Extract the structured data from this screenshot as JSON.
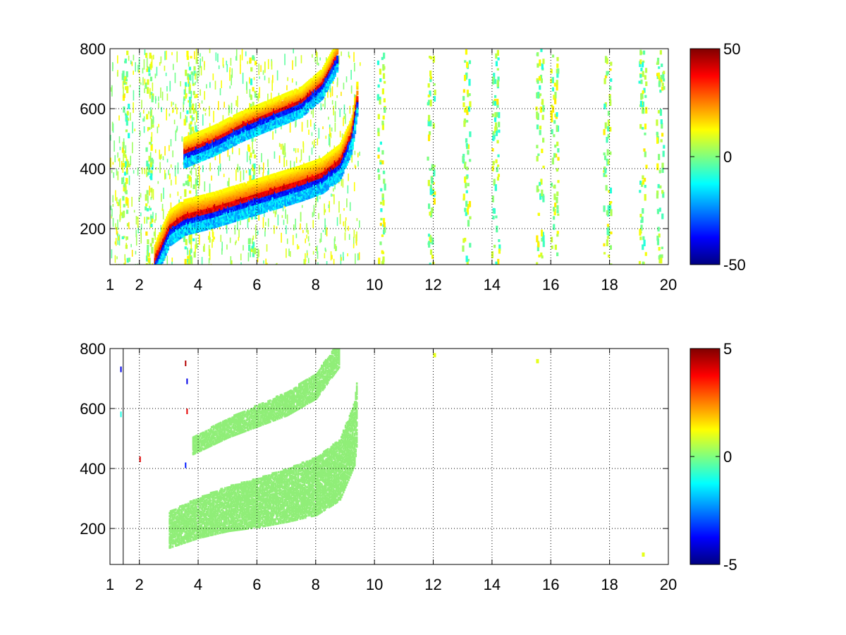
{
  "chart_data": [
    {
      "type": "heatmap",
      "title": "",
      "xlabel": "",
      "ylabel": "",
      "x_ticks": [
        1,
        2,
        4,
        6,
        8,
        10,
        12,
        14,
        16,
        18,
        20
      ],
      "x_tick_labels": [
        "1",
        "2",
        "4",
        "6",
        "8",
        "10",
        "12",
        "14",
        "16",
        "18",
        "20"
      ],
      "y_ticks": [
        200,
        400,
        600,
        800
      ],
      "y_tick_labels": [
        "200",
        "400",
        "600",
        "800"
      ],
      "xlim": [
        1,
        20
      ],
      "ylim": [
        80,
        800
      ],
      "grid": true,
      "colormap": "jet",
      "clim": [
        -50,
        50
      ],
      "colorbar_ticks": [
        -50,
        0,
        50
      ],
      "colorbar_tick_labels": [
        "-50",
        "0",
        "50"
      ],
      "features": [
        {
          "name": "upper band",
          "points": [
            [
              2.5,
              100
            ],
            [
              3.0,
              210
            ],
            [
              3.5,
              245
            ],
            [
              4.5,
              270
            ],
            [
              5.5,
              300
            ],
            [
              6.5,
              330
            ],
            [
              7.5,
              360
            ],
            [
              8.2,
              385
            ],
            [
              8.8,
              430
            ],
            [
              9.2,
              520
            ],
            [
              9.4,
              650
            ]
          ]
        },
        {
          "name": "lower-frequency arc",
          "points": [
            [
              3.5,
              460
            ],
            [
              4.5,
              500
            ],
            [
              5.5,
              550
            ],
            [
              6.5,
              590
            ],
            [
              7.5,
              630
            ],
            [
              8.2,
              690
            ],
            [
              8.7,
              780
            ]
          ]
        }
      ],
      "noise_columns": [
        1.5,
        2.3,
        3.6,
        3.8,
        5.8,
        10.2,
        11.9,
        13.1,
        14.1,
        15.6,
        16.1,
        17.9,
        19.1,
        19.7
      ]
    },
    {
      "type": "heatmap",
      "title": "",
      "xlabel": "",
      "ylabel": "",
      "x_ticks": [
        1,
        2,
        4,
        6,
        8,
        10,
        12,
        14,
        16,
        18,
        20
      ],
      "x_tick_labels": [
        "1",
        "2",
        "4",
        "6",
        "8",
        "10",
        "12",
        "14",
        "16",
        "18",
        "20"
      ],
      "y_ticks": [
        200,
        400,
        600,
        800
      ],
      "y_tick_labels": [
        "200",
        "400",
        "600",
        "800"
      ],
      "xlim": [
        1,
        20
      ],
      "ylim": [
        80,
        800
      ],
      "grid": true,
      "colormap": "jet",
      "clim": [
        -5,
        5
      ],
      "colorbar_ticks": [
        -5,
        0,
        5
      ],
      "colorbar_tick_labels": [
        "-5",
        "0",
        "5"
      ],
      "features": [
        {
          "name": "lower band",
          "points": [
            [
              3.0,
              200
            ],
            [
              4.0,
              240
            ],
            [
              5.0,
              270
            ],
            [
              6.0,
              290
            ],
            [
              7.0,
              315
            ],
            [
              8.0,
              345
            ],
            [
              8.8,
              400
            ],
            [
              9.3,
              520
            ],
            [
              9.4,
              610
            ]
          ]
        },
        {
          "name": "upper arc",
          "points": [
            [
              3.8,
              480
            ],
            [
              5.0,
              540
            ],
            [
              6.0,
              580
            ],
            [
              7.0,
              620
            ],
            [
              8.0,
              680
            ],
            [
              8.8,
              790
            ]
          ]
        }
      ],
      "sparse_points": [
        [
          12.0,
          785
        ],
        [
          19.1,
          120
        ],
        [
          15.5,
          765
        ]
      ]
    }
  ]
}
